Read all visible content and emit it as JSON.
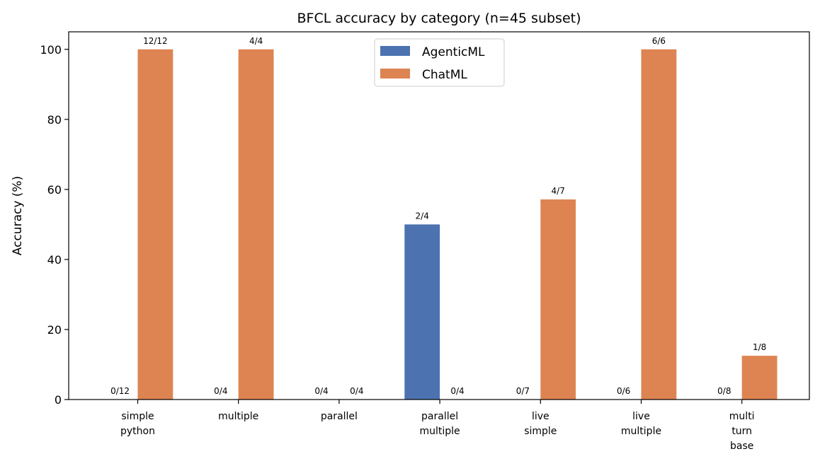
{
  "chart_data": {
    "type": "bar",
    "title": "BFCL accuracy by category (n=45 subset)",
    "xlabel": "",
    "ylabel": "Accuracy (%)",
    "ylim": [
      0,
      105
    ],
    "yticks": [
      "0",
      "20",
      "40",
      "60",
      "80",
      "100"
    ],
    "grid": false,
    "legend_position": "top-center",
    "categories": [
      [
        "simple",
        "python"
      ],
      [
        "multiple"
      ],
      [
        "parallel"
      ],
      [
        "parallel",
        "multiple"
      ],
      [
        "live",
        "simple"
      ],
      [
        "live",
        "multiple"
      ],
      [
        "multi",
        "turn",
        "base"
      ]
    ],
    "series": [
      {
        "name": "AgenticML",
        "color": "#4c72b0",
        "values": [
          0,
          0,
          0,
          50,
          0,
          0,
          0
        ],
        "labels": [
          "0/12",
          "0/4",
          "0/4",
          "2/4",
          "0/7",
          "0/6",
          "0/8"
        ]
      },
      {
        "name": "ChatML",
        "color": "#dd8452",
        "values": [
          100,
          100,
          0,
          0,
          57.14,
          100,
          12.5
        ],
        "labels": [
          "12/12",
          "4/4",
          "0/4",
          "0/4",
          "4/7",
          "6/6",
          "1/8"
        ]
      }
    ]
  }
}
